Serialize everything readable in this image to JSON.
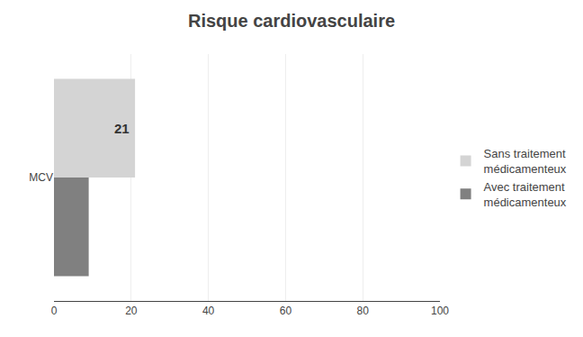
{
  "chart_data": {
    "type": "bar",
    "orientation": "horizontal",
    "title": "Risque cardiovasculaire",
    "categories": [
      "MCV"
    ],
    "series": [
      {
        "name": "Sans traitement\nmédicamenteux",
        "color": "#d4d4d4",
        "values": [
          21
        ]
      },
      {
        "name": "Avec traitement\nmédicamenteux",
        "color": "#808080",
        "values": [
          9
        ]
      }
    ],
    "annotations": [
      {
        "text": "21"
      }
    ],
    "xlim": [
      0,
      100
    ],
    "xticks": [
      0,
      20,
      40,
      60,
      80,
      100
    ],
    "grid": true,
    "legend": "right"
  }
}
